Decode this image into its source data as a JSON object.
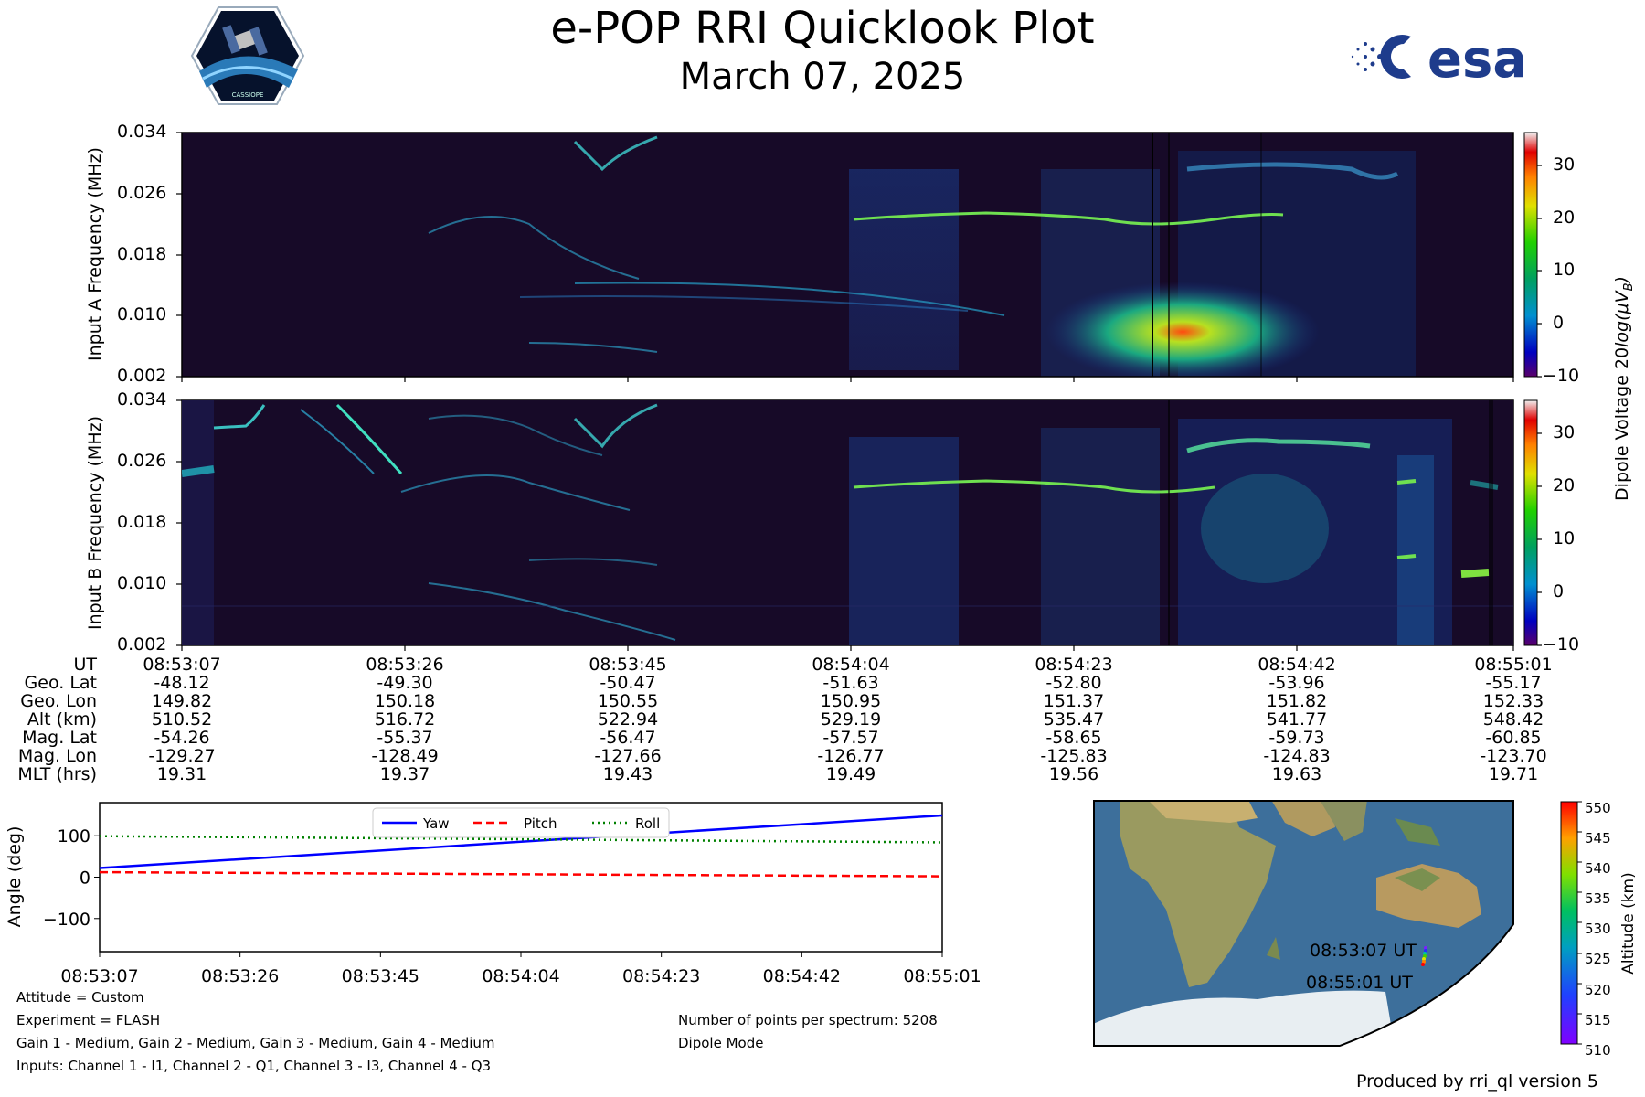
{
  "header": {
    "title": "e-POP RRI Quicklook Plot",
    "date": "March 07, 2025",
    "mission_logo_text": "CASSIOPE",
    "agency_logo_text": "esa"
  },
  "spectrogram_a": {
    "ylabel": "Input A Frequency (MHz)",
    "y_ticks": [
      "0.034",
      "0.026",
      "0.018",
      "0.010",
      "0.002"
    ]
  },
  "spectrogram_b": {
    "ylabel": "Input B Frequency (MHz)",
    "y_ticks": [
      "0.034",
      "0.026",
      "0.018",
      "0.010",
      "0.002"
    ]
  },
  "colorbar_voltage": {
    "label_main": "Dipole Voltage 20",
    "label_log": "log(",
    "label_mu": "μ",
    "label_v": "V",
    "label_sub": "B",
    "label_end": ")",
    "ticks": [
      "30",
      "20",
      "10",
      "0",
      "−10"
    ],
    "range": [
      -10,
      36
    ]
  },
  "ephemeris": {
    "row_labels": [
      "UT",
      "Geo. Lat",
      "Geo. Lon",
      "Alt (km)",
      "Mag. Lat",
      "Mag. Lon",
      "MLT (hrs)"
    ],
    "columns": [
      [
        "08:53:07",
        "-48.12",
        "149.82",
        "510.52",
        "-54.26",
        "-129.27",
        "19.31"
      ],
      [
        "08:53:26",
        "-49.30",
        "150.18",
        "516.72",
        "-55.37",
        "-128.49",
        "19.37"
      ],
      [
        "08:53:45",
        "-50.47",
        "150.55",
        "522.94",
        "-56.47",
        "-127.66",
        "19.43"
      ],
      [
        "08:54:04",
        "-51.63",
        "150.95",
        "529.19",
        "-57.57",
        "-126.77",
        "19.49"
      ],
      [
        "08:54:23",
        "-52.80",
        "151.37",
        "535.47",
        "-58.65",
        "-125.83",
        "19.56"
      ],
      [
        "08:54:42",
        "-53.96",
        "151.82",
        "541.77",
        "-59.73",
        "-124.83",
        "19.63"
      ],
      [
        "08:55:01",
        "-55.17",
        "152.33",
        "548.42",
        "-60.85",
        "-123.70",
        "19.71"
      ]
    ]
  },
  "chart_data": [
    {
      "type": "line",
      "ylabel": "Angle (deg)",
      "xlabel": "",
      "x_ticks": [
        "08:53:07",
        "08:53:26",
        "08:53:45",
        "08:54:04",
        "08:54:23",
        "08:54:42",
        "08:55:01"
      ],
      "xlim": [
        0,
        114
      ],
      "ylim": [
        -180,
        180
      ],
      "y_ticks": [
        100,
        0,
        -100
      ],
      "y_tick_labels": [
        "100",
        "0",
        "−100"
      ],
      "legend": "top-center",
      "series": [
        {
          "name": "Yaw",
          "color": "#0000ff",
          "style": "solid",
          "x": [
            0,
            114
          ],
          "y": [
            22,
            149
          ]
        },
        {
          "name": "Pitch",
          "color": "#ff0000",
          "style": "dashed",
          "x": [
            0,
            114
          ],
          "y": [
            12,
            2
          ]
        },
        {
          "name": "Roll",
          "color": "#008000",
          "style": "dotted",
          "x": [
            0,
            114
          ],
          "y": [
            99,
            84
          ]
        }
      ]
    }
  ],
  "map": {
    "start_label": "08:53:07 UT",
    "end_label": "08:55:01 UT",
    "altitude_colorbar": {
      "label": "Altitude (km)",
      "ticks": [
        "550",
        "545",
        "540",
        "535",
        "530",
        "525",
        "520",
        "515",
        "510"
      ],
      "range": [
        510,
        550
      ]
    }
  },
  "info_left": [
    "Attitude = Custom",
    "Experiment = FLASH",
    "Gain 1 - Medium, Gain 2 - Medium, Gain 3 - Medium, Gain 4 - Medium",
    "Inputs: Channel 1 - I1, Channel 2 - Q1, Channel 3 - I3, Channel 4 - Q3"
  ],
  "info_right": [
    "Number of points per spectrum: 5208",
    "Dipole Mode"
  ],
  "footer": "Produced by rri_ql version 5"
}
